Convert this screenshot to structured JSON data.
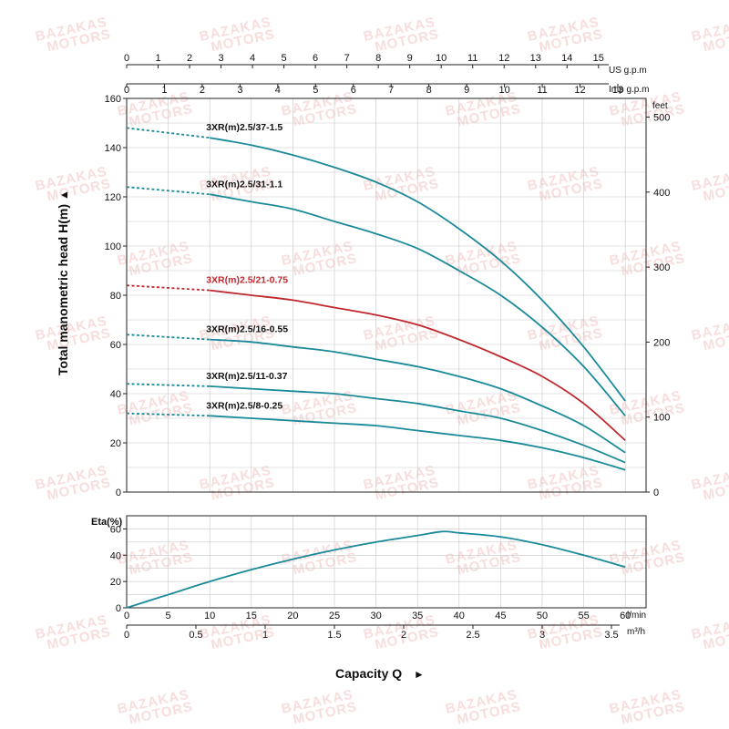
{
  "watermark": {
    "line1": "BAZAKAS",
    "line2": "MOTORS"
  },
  "chart_data": [
    {
      "type": "line",
      "name": "head-curves",
      "ylabel": "Total manometric head H(m)",
      "ylabel_arrow": "▲",
      "xlabel": "Capacity Q",
      "xlabel_arrow": "►",
      "x_units": "l/min",
      "x_units_m3h": "m³/h",
      "x_units_us": "US g.p.m",
      "x_units_imp": "Imp g.p.m",
      "y_units_right": "feet",
      "xlim": [
        0,
        60
      ],
      "ylim": [
        0,
        160
      ],
      "grid": true,
      "x_ticks": [
        "0",
        "5",
        "10",
        "15",
        "20",
        "25",
        "30",
        "35",
        "40",
        "45",
        "50",
        "55",
        "60"
      ],
      "x_ticks_m3h": [
        "0",
        "0.5",
        "1",
        "1.5",
        "2",
        "2.5",
        "3",
        "3.5"
      ],
      "x_ticks_us": [
        "0",
        "1",
        "2",
        "3",
        "4",
        "5",
        "6",
        "7",
        "8",
        "9",
        "10",
        "11",
        "12",
        "13",
        "14",
        "15"
      ],
      "x_ticks_imp": [
        "0",
        "1",
        "2",
        "3",
        "4",
        "5",
        "6",
        "7",
        "8",
        "9",
        "10",
        "11",
        "12",
        "13"
      ],
      "y_ticks": [
        "0",
        "20",
        "40",
        "60",
        "80",
        "100",
        "120",
        "140",
        "160"
      ],
      "y_ticks_feet": [
        "0",
        "100",
        "200",
        "300",
        "400",
        "500"
      ],
      "series": [
        {
          "name": "3XR(m)2.5/37-1.5",
          "color": "#1a8a9a",
          "x": [
            0,
            10,
            15,
            20,
            25,
            30,
            35,
            40,
            45,
            50,
            55,
            60
          ],
          "y": [
            148,
            144,
            141,
            137,
            132,
            126,
            118,
            107,
            94,
            78,
            59,
            37
          ]
        },
        {
          "name": "3XR(m)2.5/31-1.1",
          "color": "#1a8a9a",
          "x": [
            0,
            10,
            15,
            20,
            25,
            30,
            35,
            40,
            45,
            50,
            55,
            60
          ],
          "y": [
            124,
            121,
            118,
            115,
            110,
            105,
            99,
            90,
            80,
            67,
            51,
            31
          ]
        },
        {
          "name": "3XR(m)2.5/21-0.75",
          "color": "#c0282e",
          "x": [
            0,
            10,
            15,
            20,
            25,
            30,
            35,
            40,
            45,
            50,
            55,
            60
          ],
          "y": [
            84,
            82,
            80,
            78,
            75,
            72,
            68,
            62,
            55,
            47,
            36,
            21
          ]
        },
        {
          "name": "3XR(m)2.5/16-0.55",
          "color": "#1a8a9a",
          "x": [
            0,
            10,
            15,
            20,
            25,
            30,
            35,
            40,
            45,
            50,
            55,
            60
          ],
          "y": [
            64,
            62,
            61,
            59,
            57,
            54,
            51,
            47,
            42,
            35,
            27,
            16
          ]
        },
        {
          "name": "3XR(m)2.5/11-0.37",
          "color": "#1a8a9a",
          "x": [
            0,
            10,
            15,
            20,
            25,
            30,
            35,
            40,
            45,
            50,
            55,
            60
          ],
          "y": [
            44,
            43,
            42,
            41,
            40,
            38,
            36,
            33,
            30,
            25,
            19,
            12
          ]
        },
        {
          "name": "3XR(m)2.5/8-0.25",
          "color": "#1a8a9a",
          "x": [
            0,
            10,
            15,
            20,
            25,
            30,
            35,
            40,
            45,
            50,
            55,
            60
          ],
          "y": [
            32,
            31,
            30,
            29,
            28,
            27,
            25,
            23,
            21,
            18,
            14,
            9
          ]
        }
      ]
    },
    {
      "type": "line",
      "name": "efficiency-curve",
      "ylabel": "Eta(%)",
      "xlim": [
        0,
        60
      ],
      "ylim": [
        0,
        70
      ],
      "grid": true,
      "y_ticks": [
        "0",
        "20",
        "40",
        "60"
      ],
      "series": [
        {
          "color": "#1a8a9a",
          "x": [
            0,
            5,
            10,
            15,
            20,
            25,
            30,
            35,
            38,
            40,
            45,
            50,
            55,
            60
          ],
          "y": [
            0,
            10,
            20,
            29,
            37,
            44,
            50,
            55,
            58,
            57,
            54,
            48,
            40,
            31
          ]
        }
      ]
    }
  ]
}
